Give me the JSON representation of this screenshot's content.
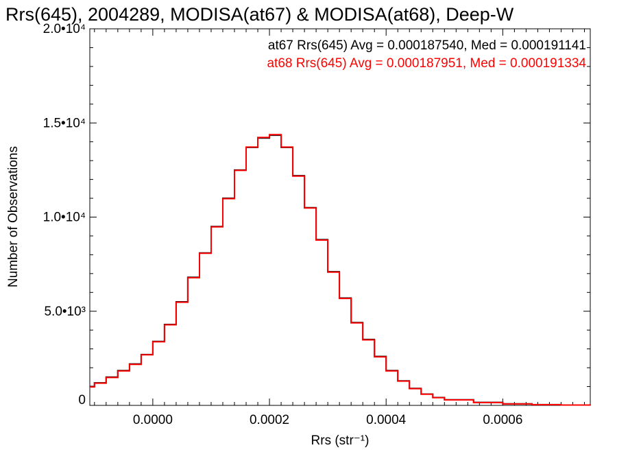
{
  "chart_data": {
    "type": "line",
    "title": "Rrs(645), 2004289, MODISA(at67) & MODISA(at68), Deep-W",
    "xlabel": "Rrs (str⁻¹)",
    "ylabel": "Number of Observations",
    "xlim": [
      -0.000108,
      0.00075
    ],
    "ylim": [
      0,
      20000
    ],
    "x_ticks": [
      0.0,
      0.0002,
      0.0004,
      0.0006
    ],
    "x_tick_labels": [
      "0.0000",
      "0.0002",
      "0.0004",
      "0.0006"
    ],
    "y_ticks": [
      0,
      5000,
      10000,
      15000,
      20000
    ],
    "y_tick_labels": [
      "0",
      "5.0•10³",
      "1.0•10⁴",
      "1.5•10⁴",
      "2.0•10⁴"
    ],
    "grid": false,
    "series": [
      {
        "name": "at67",
        "color": "#000000",
        "stat_text": "at67 Rrs(645) Avg = 0.000187540, Med = 0.000191141",
        "x": [
          -0.000108,
          -0.0001,
          -8e-05,
          -6e-05,
          -4e-05,
          -2e-05,
          0.0,
          2e-05,
          4e-05,
          6e-05,
          8e-05,
          0.0001,
          0.00012,
          0.00014,
          0.00016,
          0.00018,
          0.0002,
          0.00022,
          0.00024,
          0.00026,
          0.00028,
          0.0003,
          0.00032,
          0.00034,
          0.00036,
          0.00038,
          0.0004,
          0.00042,
          0.00044,
          0.00046,
          0.00048,
          0.0005,
          0.00055,
          0.0006,
          0.00065,
          0.0007,
          0.00075
        ],
        "y": [
          1000,
          1200,
          1500,
          1850,
          2200,
          2700,
          3400,
          4300,
          5500,
          6800,
          8100,
          9500,
          11000,
          12500,
          13700,
          14200,
          14350,
          13700,
          12200,
          10500,
          8800,
          7100,
          5700,
          4400,
          3500,
          2600,
          1850,
          1300,
          900,
          600,
          420,
          300,
          160,
          80,
          40,
          20,
          0
        ]
      },
      {
        "name": "at68",
        "color": "#ff0000",
        "stat_text": "at68 Rrs(645) Avg = 0.000187951, Med = 0.000191334",
        "x": [
          -0.000108,
          -0.0001,
          -8e-05,
          -6e-05,
          -4e-05,
          -2e-05,
          0.0,
          2e-05,
          4e-05,
          6e-05,
          8e-05,
          0.0001,
          0.00012,
          0.00014,
          0.00016,
          0.00018,
          0.0002,
          0.00022,
          0.00024,
          0.00026,
          0.00028,
          0.0003,
          0.00032,
          0.00034,
          0.00036,
          0.00038,
          0.0004,
          0.00042,
          0.00044,
          0.00046,
          0.00048,
          0.0005,
          0.00055,
          0.0006,
          0.00065,
          0.0007,
          0.00075
        ],
        "y": [
          980,
          1180,
          1480,
          1830,
          2180,
          2690,
          3380,
          4280,
          5480,
          6780,
          8080,
          9480,
          10980,
          12480,
          13720,
          14230,
          14380,
          13720,
          12180,
          10480,
          8780,
          7080,
          5680,
          4380,
          3480,
          2580,
          1830,
          1290,
          890,
          590,
          410,
          290,
          150,
          75,
          38,
          18,
          0
        ]
      }
    ]
  }
}
